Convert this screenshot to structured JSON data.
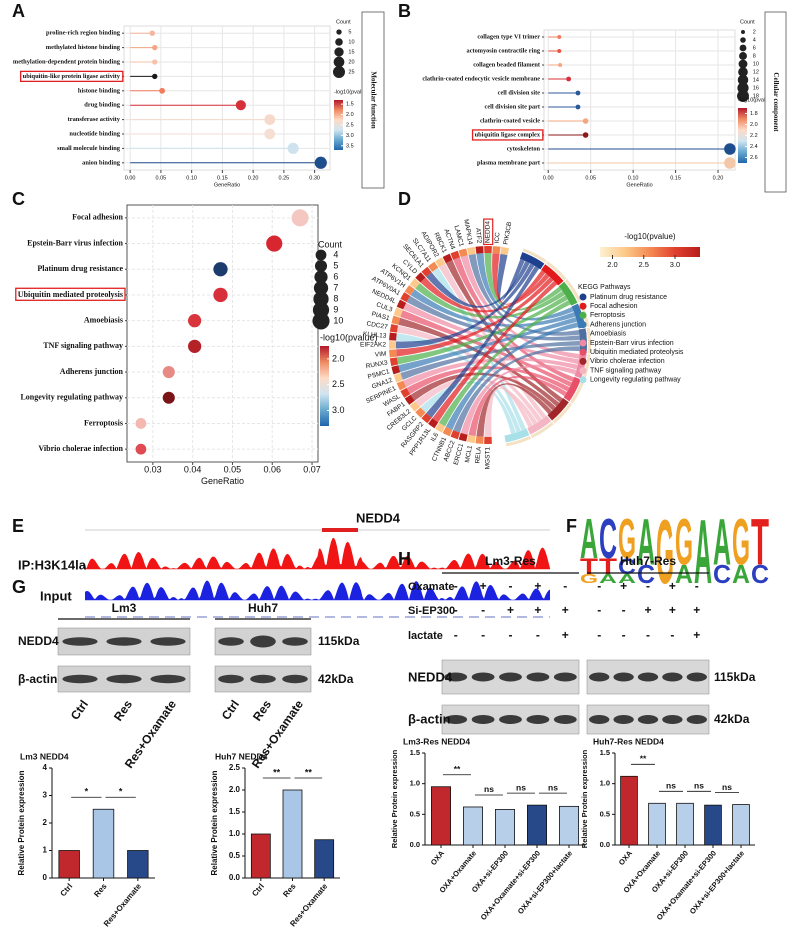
{
  "chart_data": [
    {
      "type": "dot",
      "panel": "A",
      "categories": [
        "proline-rich region binding",
        "methylated histone binding",
        "methylation-dependent protein binding",
        "ubiquitin-like protein ligase activity",
        "histone binding",
        "drug binding",
        "transferase activity",
        "nucleotide binding",
        "small molecule binding",
        "anion binding"
      ],
      "values": [
        0.036,
        0.04,
        0.04,
        0.04,
        0.052,
        0.18,
        0.227,
        0.227,
        0.265,
        0.31
      ],
      "counts": [
        5,
        5,
        5,
        5,
        6,
        18,
        20,
        20,
        22,
        26
      ],
      "colors": [
        "#f6b49c",
        "#f4a582",
        "#f6c2a8",
        "#1a1a1a",
        "#ef7d5e",
        "#d6303a",
        "#f7d9cc",
        "#f5ded4",
        "#cfe3ee",
        "#1f4e8c"
      ],
      "stem": true,
      "highlight": 3,
      "grid": true,
      "x_label": "GeneRatio",
      "xlim": [
        -0.01,
        0.325
      ],
      "xticks": [
        {
          "value": 0,
          "label": "0.00"
        },
        {
          "value": 0.05,
          "label": "0.05"
        },
        {
          "value": 0.1,
          "label": "0.10"
        },
        {
          "value": 0.15,
          "label": "0.15"
        },
        {
          "value": 0.2,
          "label": "0.20"
        },
        {
          "value": 0.25,
          "label": "0.25"
        },
        {
          "value": 0.3,
          "label": "0.30"
        }
      ],
      "size_legend": {
        "title": "Count",
        "values": [
          5,
          10,
          15,
          20,
          25
        ]
      },
      "color_legend": {
        "title": "-log10(pvalue)",
        "lim": [
          1.3,
          3.7
        ],
        "ticks": [
          1.5,
          {
            "value": 2,
            "label": "2.0"
          },
          2.5,
          {
            "value": 3,
            "label": "3.0"
          },
          3.5
        ],
        "colors": [
          "#b2182b",
          "#ef8a62",
          "#fddbc7",
          "#d1e5f0",
          "#67a9cf",
          "#2166ac"
        ]
      },
      "side_label": "Molecular function"
    },
    {
      "type": "dot",
      "panel": "B",
      "categories": [
        "collagen type VI trimer",
        "actomyosin contractile ring",
        "collagen beaded filament",
        "clathrin-coated endocytic vesicle membrane",
        "cell division site",
        "cell division site part",
        "clathrin-coated vesicle",
        "ubiquitin ligase complex",
        "cytoskeleton",
        "plasma membrane part"
      ],
      "values": [
        0.013,
        0.013,
        0.014,
        0.024,
        0.035,
        0.035,
        0.044,
        0.044,
        0.214,
        0.214
      ],
      "counts": [
        2,
        2,
        2,
        3,
        3,
        3,
        4,
        4,
        17,
        17
      ],
      "colors": [
        "#ef7d5e",
        "#e8553f",
        "#f4a582",
        "#d6303a",
        "#2b5a9a",
        "#2b5a9a",
        "#f4a582",
        "#8b1a1a",
        "#1f4e8c",
        "#f3c8a8"
      ],
      "stem": true,
      "highlight": 7,
      "grid": true,
      "x_label": "GeneRatio",
      "xlim": [
        -0.005,
        0.22
      ],
      "xticks": [
        {
          "value": 0,
          "label": "0.00"
        },
        {
          "value": 0.05,
          "label": "0.05"
        },
        {
          "value": 0.1,
          "label": "0.10"
        },
        {
          "value": 0.15,
          "label": "0.15"
        },
        {
          "value": 0.2,
          "label": "0.20"
        }
      ],
      "size_legend": {
        "title": "Count",
        "values": [
          2,
          4,
          6,
          8,
          10,
          12,
          14,
          16,
          18
        ]
      },
      "color_legend": {
        "title": "-log10(pvalue)",
        "lim": [
          1.7,
          2.7
        ],
        "ticks": [
          1.8,
          {
            "value": 2,
            "label": "2.0"
          },
          2.2,
          2.4,
          2.6
        ],
        "colors": [
          "#b2182b",
          "#ef8a62",
          "#fddbc7",
          "#d1e5f0",
          "#67a9cf",
          "#2166ac"
        ]
      },
      "side_label": "Cellular component"
    },
    {
      "type": "dot",
      "panel": "C",
      "categories": [
        "Focal adhesion",
        "Epstein-Barr virus infection",
        "Platinum drug resistance",
        "Ubiquitin mediated proteolysis",
        "Amoebiasis",
        "TNF signaling pathway",
        "Adherens junction",
        "Longevity regulating pathway",
        "Ferroptosis",
        "Vibrio cholerae infection"
      ],
      "values": [
        0.067,
        0.0605,
        0.047,
        0.047,
        0.0405,
        0.0405,
        0.034,
        0.034,
        0.027,
        0.027
      ],
      "counts": [
        10,
        9,
        7,
        7,
        6,
        6,
        5,
        5,
        4,
        4
      ],
      "colors": [
        "#f4c7c0",
        "#d7262f",
        "#1d3c6e",
        "#d7303a",
        "#d8353c",
        "#b42127",
        "#e88a84",
        "#7a1416",
        "#f4b8b0",
        "#e04a52"
      ],
      "stem": false,
      "highlight": 3,
      "grid": true,
      "x_label": "GeneRatio",
      "xlim": [
        0.0235,
        0.0715
      ],
      "xticks": [
        0.03,
        0.04,
        0.05,
        0.06,
        0.07
      ],
      "size_legend": {
        "title": "Count",
        "values": [
          4,
          5,
          6,
          7,
          8,
          9,
          10
        ]
      },
      "color_legend": {
        "title": "-log10(pvalue)",
        "lim": [
          1.75,
          3.3
        ],
        "ticks": [
          {
            "value": 2,
            "label": "2.0"
          },
          2.5,
          {
            "value": 3,
            "label": "3.0"
          }
        ],
        "colors": [
          "#b2182b",
          "#ef8a62",
          "#fddbc7",
          "#d1e5f0",
          "#67a9cf",
          "#2166ac"
        ]
      }
    },
    {
      "type": "bar",
      "title": "Lm3 NEDD4",
      "y_label": "Relative Protein expression",
      "categories": [
        "Ctrl",
        "Res",
        "Res+Oxamate"
      ],
      "values": [
        1.0,
        2.5,
        1.0
      ],
      "colors": [
        "#c0282d",
        "#a9c6e6",
        "#27498a"
      ],
      "ylim": [
        0,
        4
      ],
      "yticks": [
        0,
        1,
        2,
        3,
        4
      ],
      "annotations": [
        "*",
        "*"
      ]
    },
    {
      "type": "bar",
      "title": "Huh7 NEDD4",
      "y_label": "Relative Protein expression",
      "categories": [
        "Ctrl",
        "Res",
        "Res+Oxamate"
      ],
      "values": [
        1.0,
        2.0,
        0.87
      ],
      "colors": [
        "#c0282d",
        "#a9c6e6",
        "#27498a"
      ],
      "ylim": [
        0,
        2.5
      ],
      "yticks": [
        {
          "value": 0,
          "label": "0.0"
        },
        0.5,
        {
          "value": 1,
          "label": "1.0"
        },
        1.5,
        {
          "value": 2,
          "label": "2.0"
        },
        2.5
      ],
      "annotations": [
        "**",
        "**"
      ]
    },
    {
      "type": "bar",
      "title": "Lm3-Res NEDD4",
      "y_label": "Relative Protein expression",
      "categories": [
        "OXA",
        "OXA+Oxamate",
        "OXA+si-EP300",
        "OXA+Oxamate+si-EP300",
        "OXA+si-EP300+lactate"
      ],
      "values": [
        0.95,
        0.62,
        0.58,
        0.65,
        0.63
      ],
      "colors": [
        "#c0282d",
        "#b7cfe8",
        "#b7cfe8",
        "#27498a",
        "#b7cfe8"
      ],
      "ylim": [
        0,
        1.5
      ],
      "yticks": [
        {
          "value": 0,
          "label": "0.0"
        },
        0.5,
        {
          "value": 1,
          "label": "1.0"
        },
        1.5
      ],
      "annotations": [
        "**",
        "ns",
        "ns",
        "ns"
      ]
    },
    {
      "type": "bar",
      "title": "Huh7-Res NEDD4",
      "y_label": "Relative Protein expression",
      "categories": [
        "OXA",
        "OXA+Oxamate",
        "OXA+si-EP300",
        "OXA+Oxamate+si-EP300",
        "OXA+si-EP300+lactate"
      ],
      "values": [
        1.12,
        0.68,
        0.68,
        0.65,
        0.66
      ],
      "colors": [
        "#c0282d",
        "#b7cfe8",
        "#b7cfe8",
        "#27498a",
        "#b7cfe8"
      ],
      "ylim": [
        0,
        1.5
      ],
      "yticks": [
        {
          "value": 0,
          "label": "0.0"
        },
        0.5,
        {
          "value": 1,
          "label": "1.0"
        },
        1.5
      ],
      "annotations": [
        "**",
        "ns",
        "ns",
        "ns"
      ]
    }
  ],
  "chord": {
    "panel": "D",
    "genes": [
      "PIK3CB",
      "ICC",
      "NEDD4",
      "ATF2",
      "MAPK14",
      "LAMC1",
      "ACTN4",
      "RBCK1",
      "ADIPOR2",
      "SLC7A11",
      "SEC61A1",
      "CYLD",
      "KCNQ1",
      "ATP6V1H",
      "ATP6V0A1",
      "NEDD4L",
      "CUL3",
      "PIAS1",
      "CDC27",
      "KLHL13",
      "EIF2AK2",
      "VIM",
      "RUNX3",
      "PSMC1",
      "GNA12",
      "SERPINE1",
      "WASL",
      "FABP1",
      "CREB3L2",
      "GCLC",
      "RASGRP2",
      "PPP1R13L",
      "IL6",
      "CTNNB1",
      "ABCC2",
      "ERCC1",
      "MCL1",
      "RELA",
      "MGST1"
    ],
    "highlight": 2,
    "colorbar": {
      "title": "-log10(pvalue)",
      "lim": [
        1.8,
        3.4
      ],
      "ticks": [
        {
          "value": 2,
          "label": "2.0"
        },
        2.5,
        {
          "value": 3,
          "label": "3.0"
        }
      ],
      "colors": [
        "#fdf0d0",
        "#fcc98a",
        "#f48a52",
        "#e0412e",
        "#b81d1d"
      ]
    },
    "legend_title": "KEGG Pathways",
    "pathways": [
      {
        "name": "Platinum drug resistance",
        "color": "#1f3f8f"
      },
      {
        "name": "Focal adhesion",
        "color": "#e31a1c"
      },
      {
        "name": "Ferroptosis",
        "color": "#4daf4a"
      },
      {
        "name": "Adherens junction",
        "color": "#3b7bb5"
      },
      {
        "name": "Amoebiasis",
        "color": "#4f6fa0"
      },
      {
        "name": "Epstein-Barr virus infection",
        "color": "#ef8aa4"
      },
      {
        "name": "Ubiquitin mediated proteolysis",
        "color": "#e8506a"
      },
      {
        "name": "Vibrio cholerae infection",
        "color": "#a0262a"
      },
      {
        "name": "TNF signaling pathway",
        "color": "#f4b6c2"
      },
      {
        "name": "Longevity regulating pathway",
        "color": "#a8e0e8"
      }
    ]
  },
  "track": {
    "panel": "E",
    "gene": "NEDD4",
    "tracks": [
      "IP:H3K14la",
      "Input"
    ]
  },
  "logo": {
    "panel": "F",
    "columns": [
      [
        "A",
        "T",
        "G"
      ],
      [
        "C",
        "T",
        "A"
      ],
      [
        "G",
        "C",
        "A"
      ],
      [
        "A",
        "C"
      ],
      [
        "G"
      ],
      [
        "G",
        "A"
      ],
      [
        "A"
      ],
      [
        "A",
        "C"
      ],
      [
        "G",
        "A"
      ],
      [
        "T",
        "C"
      ]
    ]
  },
  "blots_g": {
    "panel": "G",
    "cell_lines": [
      "Lm3",
      "Huh7"
    ],
    "proteins": [
      "NEDD4",
      "β-actin"
    ],
    "sizes": [
      "115kDa",
      "42kDa"
    ],
    "lanes": [
      "Ctrl",
      "Res",
      "Res+Oxamate"
    ]
  },
  "blots_h": {
    "panel": "H",
    "cell_lines": [
      "Lm3-Res",
      "Huh7-Res"
    ],
    "treatments": [
      {
        "name": "Oxamate",
        "signs": [
          "-",
          "+",
          "-",
          "+",
          "-"
        ]
      },
      {
        "name": "Si-EP300",
        "signs": [
          "-",
          "-",
          "+",
          "+",
          "+"
        ]
      },
      {
        "name": "lactate",
        "signs": [
          "-",
          "-",
          "-",
          "-",
          "+"
        ]
      }
    ],
    "proteins": [
      "NEDD4",
      "β-actin"
    ],
    "sizes": [
      "115kDa",
      "42kDa"
    ]
  }
}
